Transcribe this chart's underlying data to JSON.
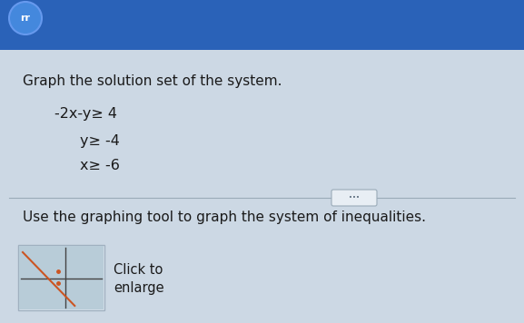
{
  "title_text": "Graph the solution set of the system.",
  "inequality1": "-2x-y≥ 4",
  "inequality2": "y≥ -4",
  "inequality3": "x≥ -6",
  "separator_text": "Use the graphing tool to graph the system of inequalities.",
  "button_text1": "Click to",
  "button_text2": "enlarge",
  "top_bar_color": "#2a62b8",
  "background_color": "#c8d8e8",
  "panel_color": "#ccd8e4",
  "separator_color": "#9aabb8",
  "text_color": "#1a1a1a",
  "button_bg": "#dce6f0",
  "button_border": "#a0b0c0",
  "pill_color": "#e8eef4",
  "pill_border": "#9aabb8",
  "thumb_bg": "#b8ccd8",
  "thumb_line_color": "#444444",
  "thumb_orange": "#cc5522"
}
